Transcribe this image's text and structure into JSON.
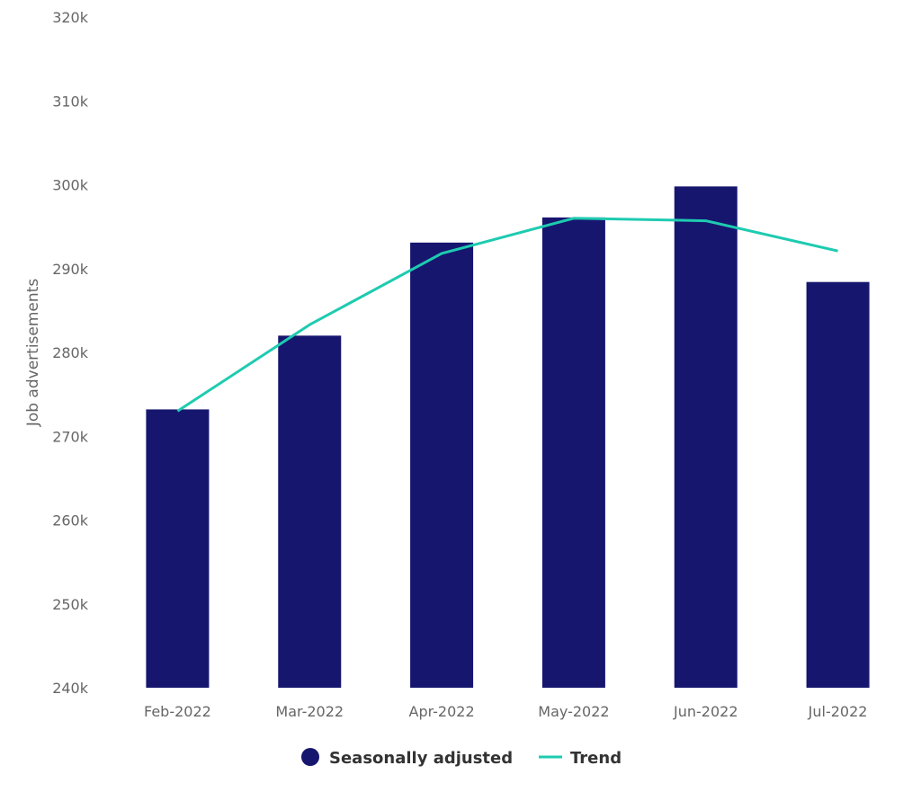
{
  "chart_data": {
    "type": "bar",
    "title": "",
    "xlabel": "",
    "ylabel": "Job advertisements",
    "ylim": [
      240000,
      320000
    ],
    "yticks": [
      240000,
      250000,
      260000,
      270000,
      280000,
      290000,
      300000,
      310000,
      320000
    ],
    "ytick_labels": [
      "240k",
      "250k",
      "260k",
      "270k",
      "280k",
      "290k",
      "300k",
      "310k",
      "320k"
    ],
    "categories": [
      "Feb-2022",
      "Mar-2022",
      "Apr-2022",
      "May-2022",
      "Jun-2022",
      "Jul-2022"
    ],
    "series": [
      {
        "name": "Seasonally adjusted",
        "kind": "bar",
        "color": "#17166f",
        "values": [
          273200,
          282000,
          293100,
          296100,
          299800,
          288400
        ]
      },
      {
        "name": "Trend",
        "kind": "line",
        "color": "#1ecbb0",
        "values": [
          273000,
          283300,
          291800,
          296000,
          295700,
          292100
        ]
      }
    ],
    "grid": false,
    "legend": "bottom-center"
  }
}
